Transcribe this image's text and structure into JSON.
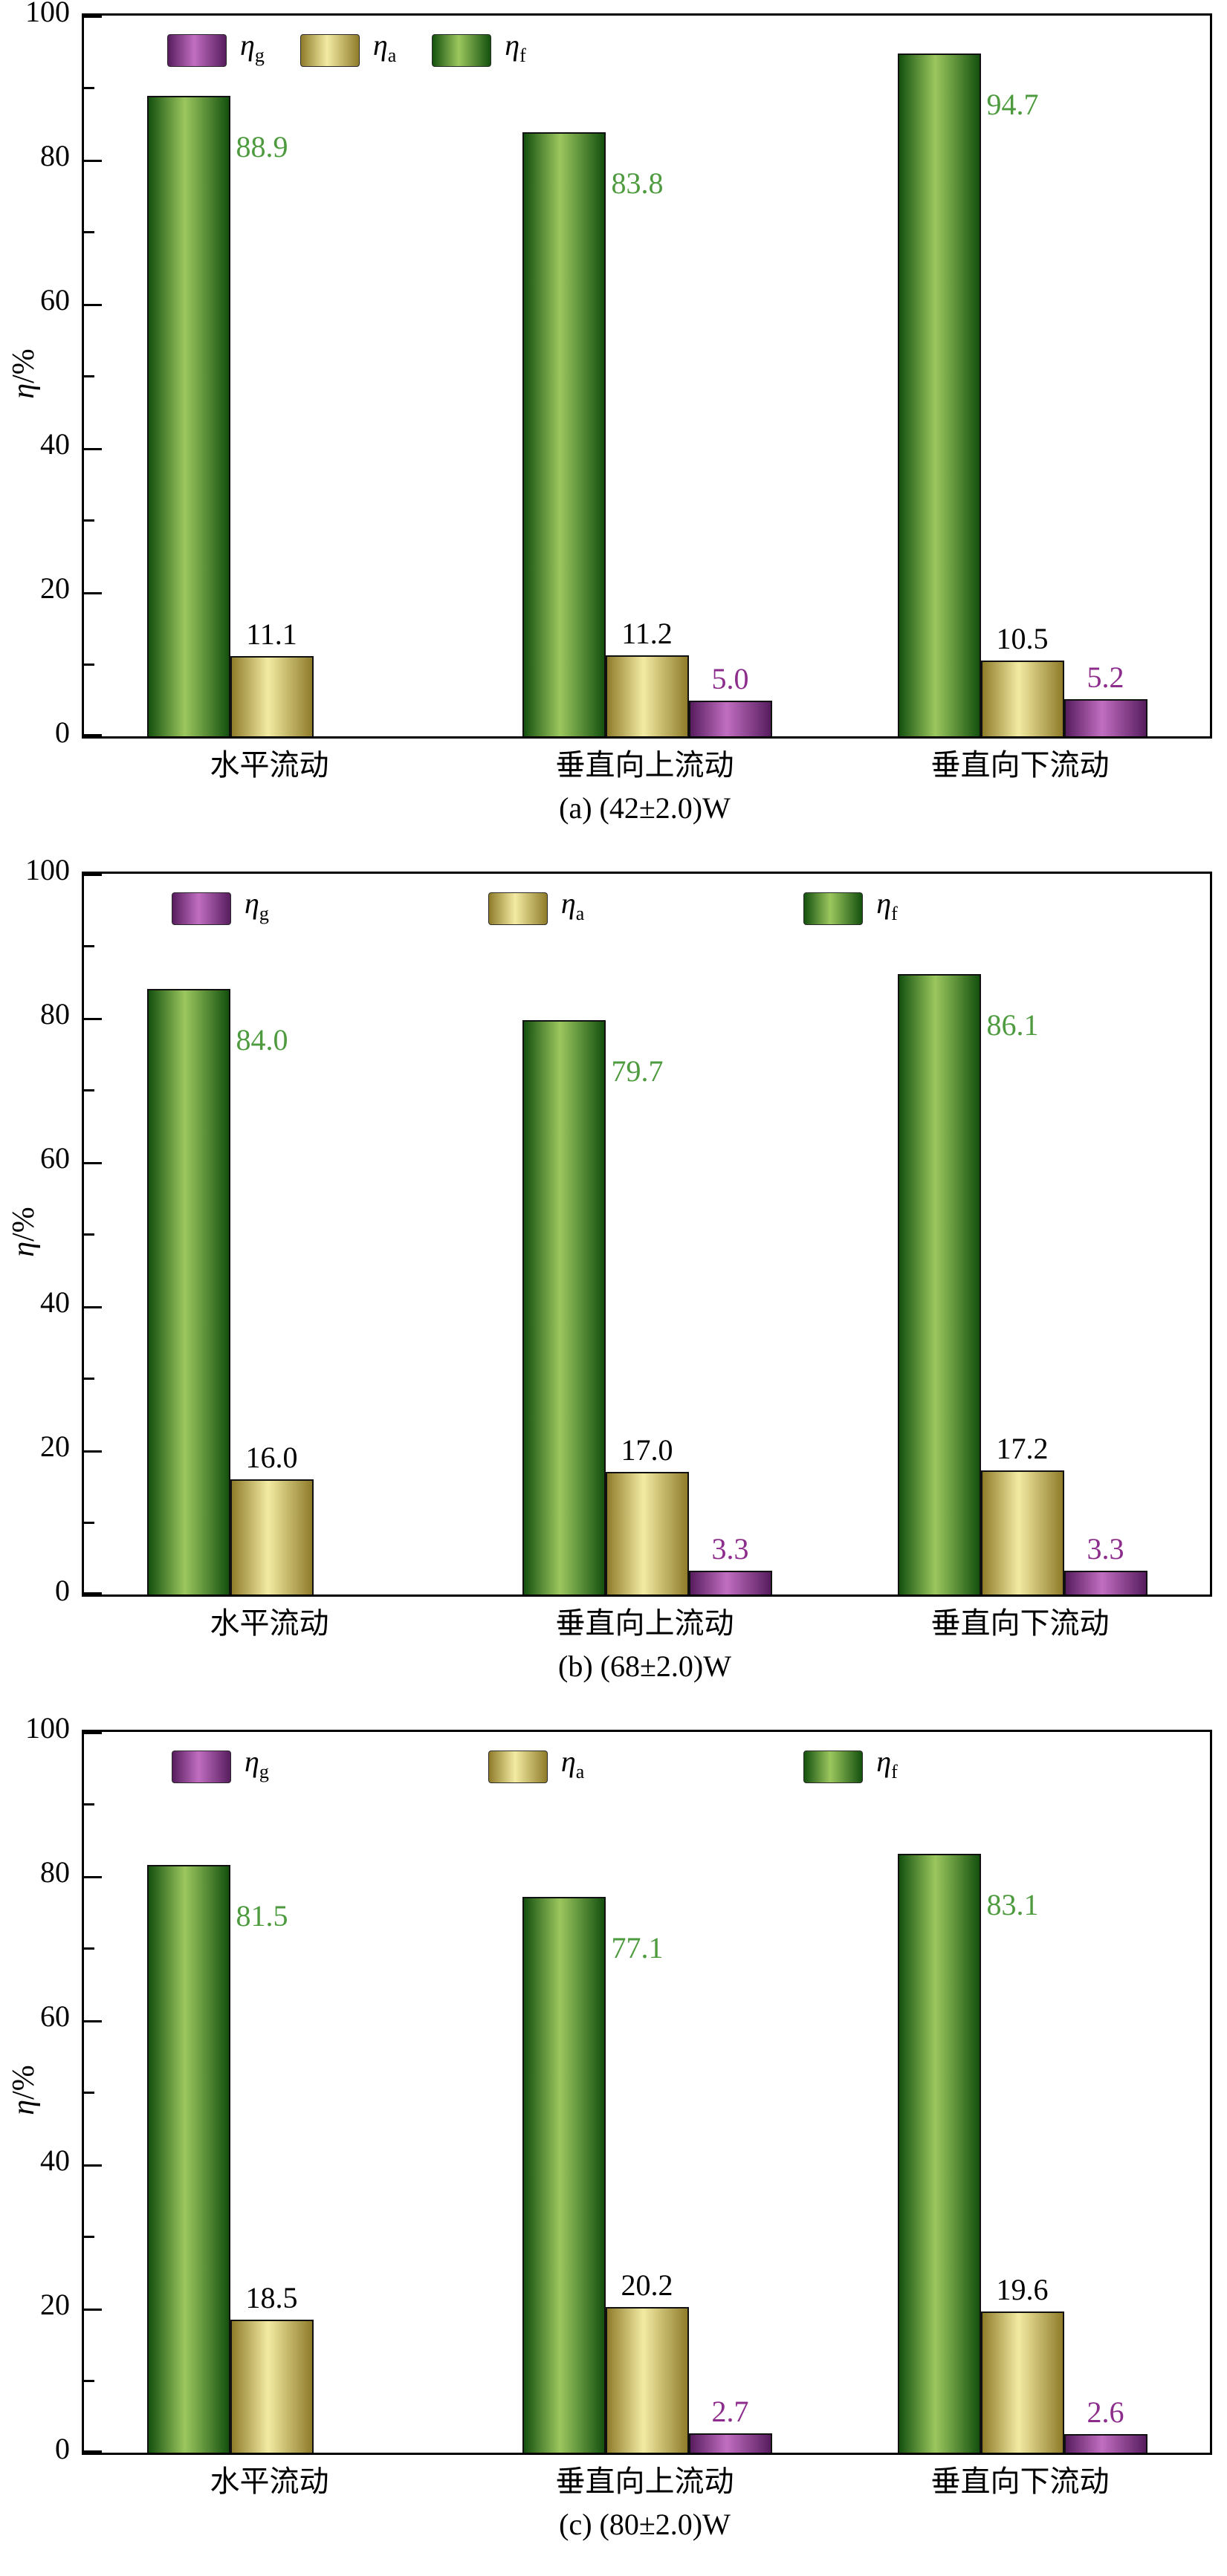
{
  "figure": {
    "y_axis_label_main": "η",
    "y_axis_label_rest": "/%",
    "y_major_ticks": [
      0,
      20,
      40,
      60,
      80,
      100
    ],
    "y_minor_ticks": [
      10,
      30,
      50,
      70,
      90
    ],
    "ylim": [
      0,
      100
    ]
  },
  "series_meta": {
    "eta_g": {
      "label": "η",
      "sub": "g",
      "edge": "#571d5e",
      "center": "#c16ec1",
      "value_color": "#8c2d8c",
      "value_pos": "above"
    },
    "eta_a": {
      "label": "η",
      "sub": "a",
      "edge": "#8f7c2a",
      "center": "#f3eba3",
      "value_color": "#000000",
      "value_pos": "above"
    },
    "eta_f": {
      "label": "η",
      "sub": "f",
      "edge": "#14510f",
      "center": "#9cc75e",
      "value_color": "#4e9b3f",
      "value_pos": "side"
    }
  },
  "chart_data": [
    {
      "type": "bar",
      "title": "(a) (42±2.0)W",
      "ylabel": "η/%",
      "ylim": [
        0,
        100
      ],
      "legend_spread": "narrow",
      "categories": [
        "水平流动",
        "垂直向上流动",
        "垂直向下流动"
      ],
      "series": [
        {
          "name": "eta_g",
          "values": [
            null,
            5.0,
            5.2
          ]
        },
        {
          "name": "eta_a",
          "values": [
            11.1,
            11.2,
            10.5
          ]
        },
        {
          "name": "eta_f",
          "values": [
            88.9,
            83.8,
            94.7
          ]
        }
      ]
    },
    {
      "type": "bar",
      "title": "(b) (68±2.0)W",
      "ylabel": "η/%",
      "ylim": [
        0,
        100
      ],
      "legend_spread": "wide",
      "categories": [
        "水平流动",
        "垂直向上流动",
        "垂直向下流动"
      ],
      "series": [
        {
          "name": "eta_g",
          "values": [
            null,
            3.3,
            3.3
          ]
        },
        {
          "name": "eta_a",
          "values": [
            16.0,
            17.0,
            17.2
          ]
        },
        {
          "name": "eta_f",
          "values": [
            84.0,
            79.7,
            86.1
          ]
        }
      ]
    },
    {
      "type": "bar",
      "title": "(c) (80±2.0)W",
      "ylabel": "η/%",
      "ylim": [
        0,
        100
      ],
      "legend_spread": "wide",
      "categories": [
        "水平流动",
        "垂直向上流动",
        "垂直向下流动"
      ],
      "series": [
        {
          "name": "eta_g",
          "values": [
            null,
            2.7,
            2.6
          ]
        },
        {
          "name": "eta_a",
          "values": [
            18.5,
            20.2,
            19.6
          ]
        },
        {
          "name": "eta_f",
          "values": [
            81.5,
            77.1,
            83.1
          ]
        }
      ]
    }
  ]
}
